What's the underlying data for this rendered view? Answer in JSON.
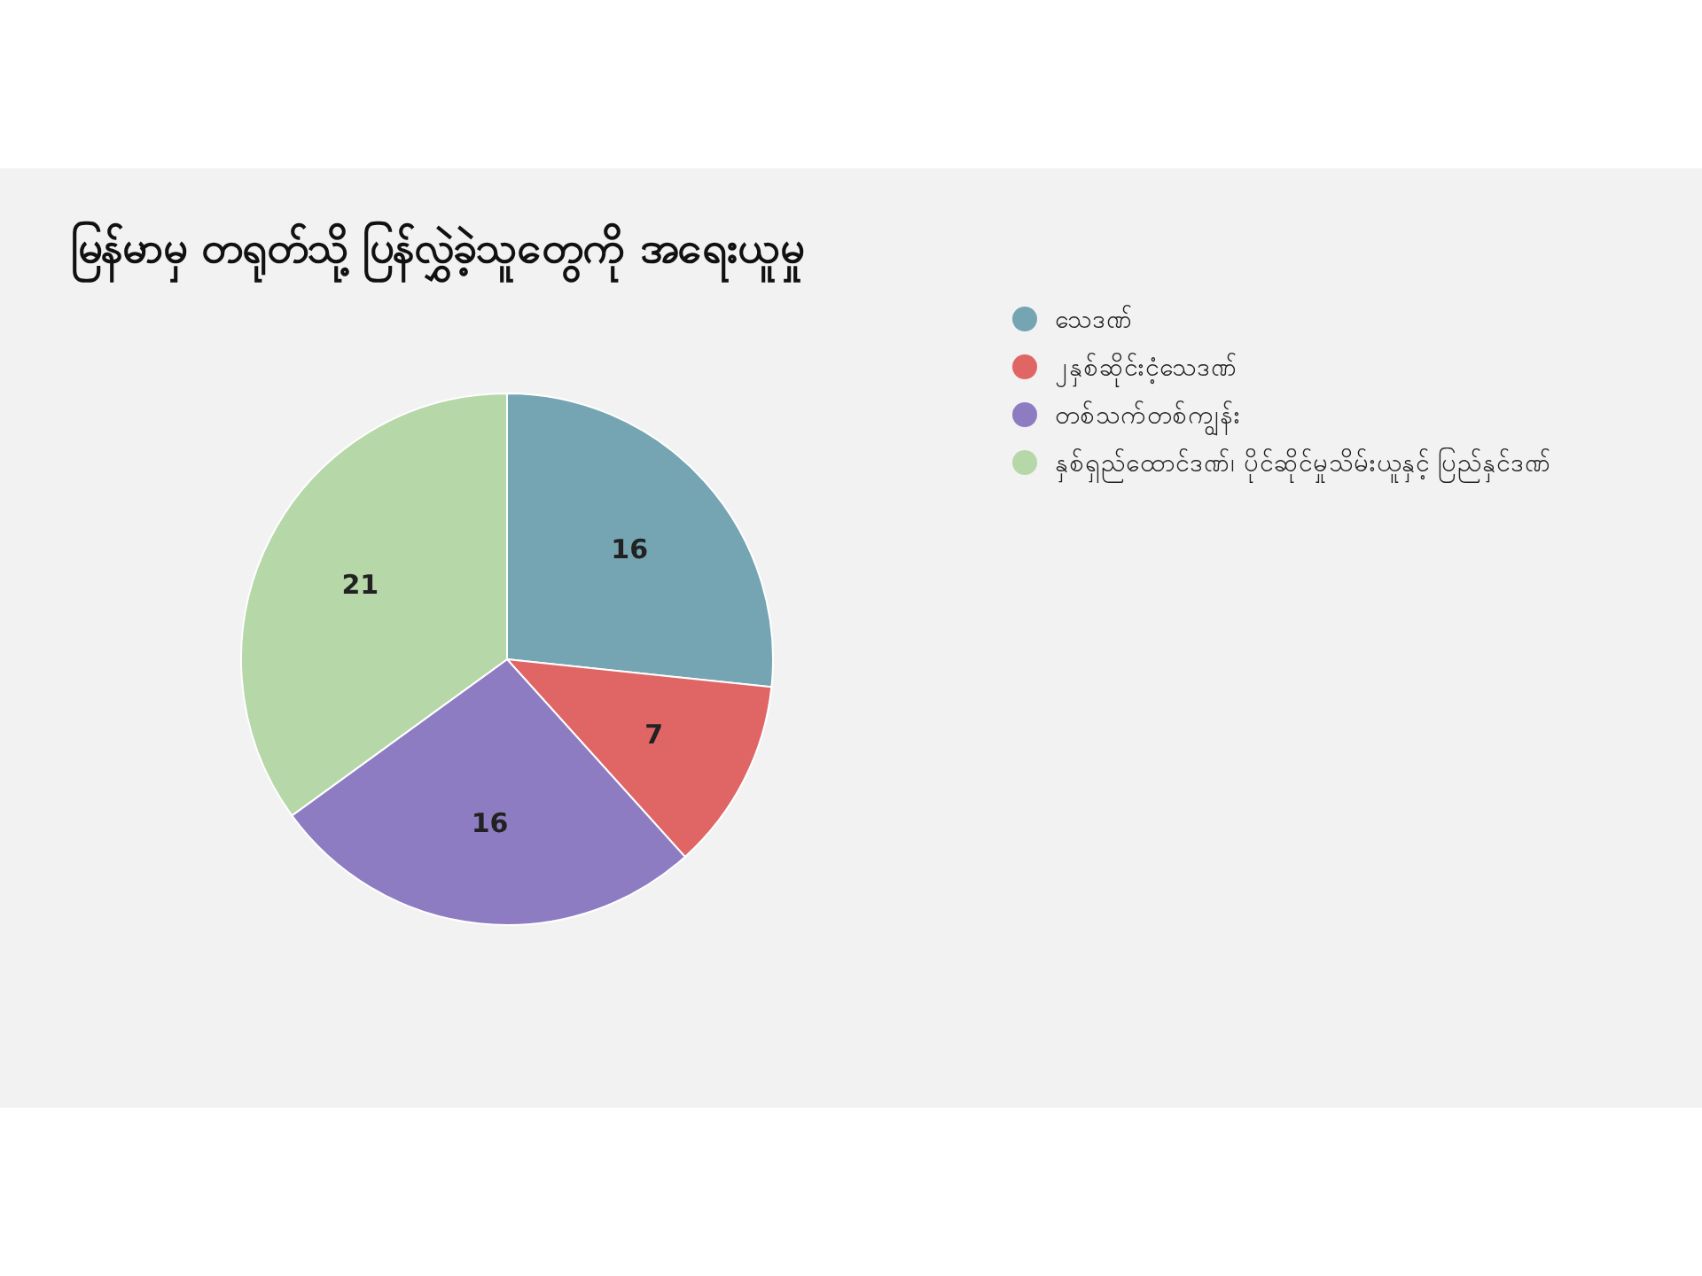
{
  "chart_data": {
    "type": "pie",
    "title": "မြန်မာမှ တရုတ်သို့ ပြန်လွှဲခဲ့သူတွေကို အရေးယူမှု",
    "categories": [
      "သေဒဏ်",
      "၂နှစ်ဆိုင်းငံ့သေဒဏ်",
      "တစ်သက်တစ်ကျွန်း",
      "နှစ်ရှည်ထောင်ဒဏ်၊ ပိုင်ဆိုင်မှုသိမ်းယူနှင့် ပြည်နှင်ဒဏ်"
    ],
    "values": [
      16,
      7,
      16,
      21
    ],
    "colors": [
      "#75a5b2",
      "#e06666",
      "#8e7cc3",
      "#b6d7a8"
    ],
    "data_labels": true,
    "legend": "top right"
  }
}
